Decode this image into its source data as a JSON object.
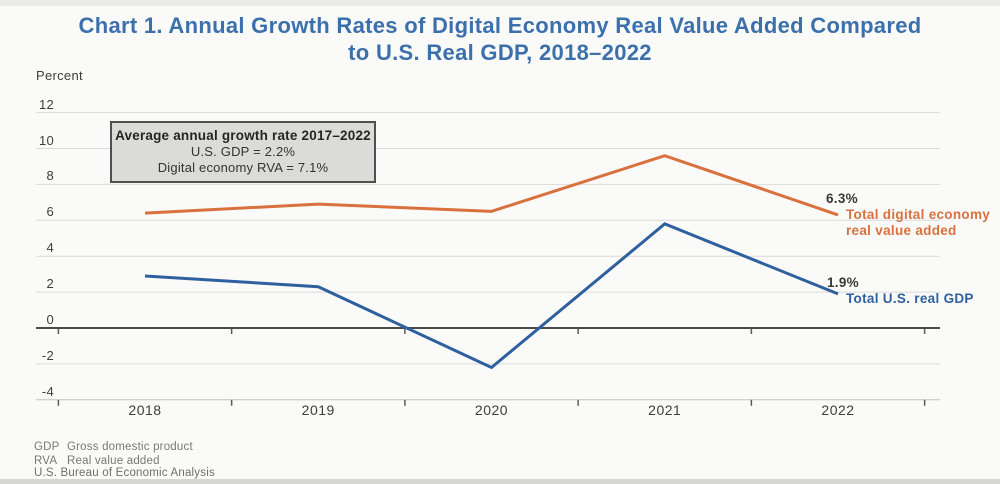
{
  "title": {
    "line1": "Chart 1. Annual Growth Rates of Digital Economy Real Value Added Compared",
    "line2": "to U.S. Real GDP, 2018–2022"
  },
  "colors": {
    "title_accent": "#3B70AD",
    "zero_axis": "#4a4a4a",
    "gridline": "#dadad8",
    "bottom_axis": "#c2c2c0",
    "annotation_bg": "#dbdbd9",
    "annotation_border": "#4f4f4f"
  },
  "chart_data": {
    "type": "line",
    "title": "Chart 1. Annual Growth Rates of Digital Economy Real Value Added Compared to U.S. Real GDP, 2018–2022",
    "ylabel": "Percent",
    "xlabel": "",
    "categories": [
      "2018",
      "2019",
      "2020",
      "2021",
      "2022"
    ],
    "series": [
      {
        "name": "Total digital economy real value added",
        "values": [
          6.4,
          6.9,
          6.5,
          9.6,
          6.3
        ],
        "color": "#D9713E",
        "end_label": "6.3%"
      },
      {
        "name": "Total U.S. real GDP",
        "values": [
          2.9,
          2.3,
          -2.2,
          5.8,
          1.9
        ],
        "color": "#2E5F9F",
        "end_label": "1.9%"
      }
    ],
    "ylim": [
      -4,
      12
    ],
    "yticks": [
      12,
      10,
      8,
      6,
      4,
      2,
      0,
      -2,
      -4
    ],
    "grid": true,
    "legend_position": "right-of-line-ends"
  },
  "annotation_box": {
    "title": "Average annual growth rate 2017–2022",
    "line1": "U.S. GDP = 2.2%",
    "line2": "Digital economy RVA = 7.1%"
  },
  "series_labels": {
    "digital": {
      "value": "6.3%",
      "label_line1": "Total digital economy",
      "label_line2": "real value added"
    },
    "gdp": {
      "value": "1.9%",
      "label": "Total U.S. real GDP"
    }
  },
  "footnotes": {
    "items": [
      {
        "term": "GDP",
        "definition": "Gross domestic product"
      },
      {
        "term": "RVA",
        "definition": "Real value added"
      }
    ],
    "source": "U.S. Bureau of Economic Analysis"
  }
}
